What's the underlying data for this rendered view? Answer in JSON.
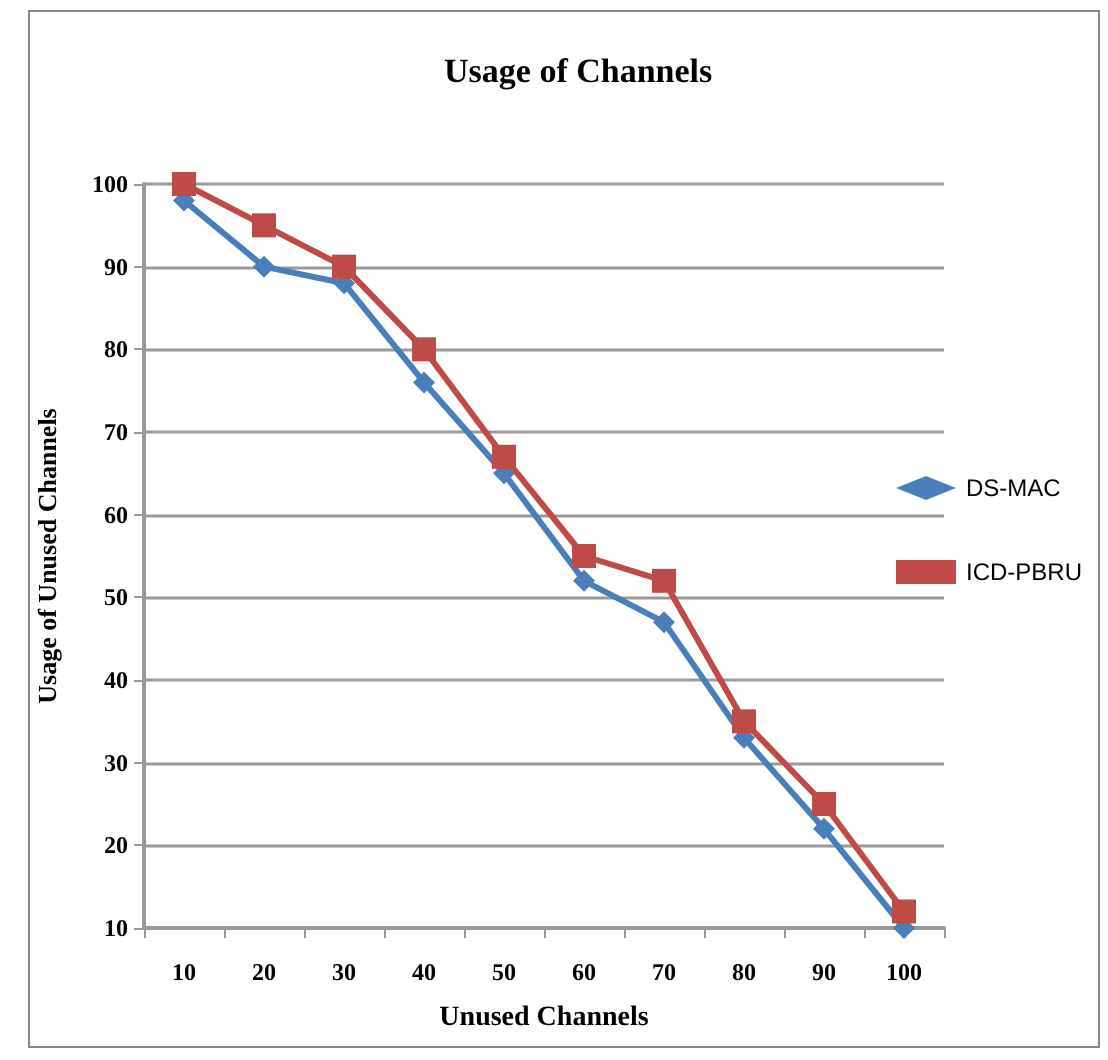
{
  "chart_data": {
    "type": "line",
    "title": "Usage of Channels",
    "xlabel": "Unused Channels",
    "ylabel": "Usage of Unused Channels",
    "categories": [
      "10",
      "20",
      "30",
      "40",
      "50",
      "60",
      "70",
      "80",
      "90",
      "100"
    ],
    "series": [
      {
        "name": "DS-MAC",
        "color": "#4a7ebb",
        "marker": "diamond",
        "values": [
          98,
          90,
          88,
          76,
          65,
          52,
          47,
          33,
          22,
          10
        ]
      },
      {
        "name": "ICD-PBRU",
        "color": "#be4b48",
        "marker": "square",
        "values": [
          100,
          95,
          90,
          80,
          67,
          55,
          52,
          35,
          25,
          12
        ]
      }
    ],
    "ylim": [
      10,
      100
    ],
    "yticks": [
      10,
      20,
      30,
      40,
      50,
      60,
      70,
      80,
      90,
      100
    ],
    "grid": "y",
    "legend": "right"
  }
}
